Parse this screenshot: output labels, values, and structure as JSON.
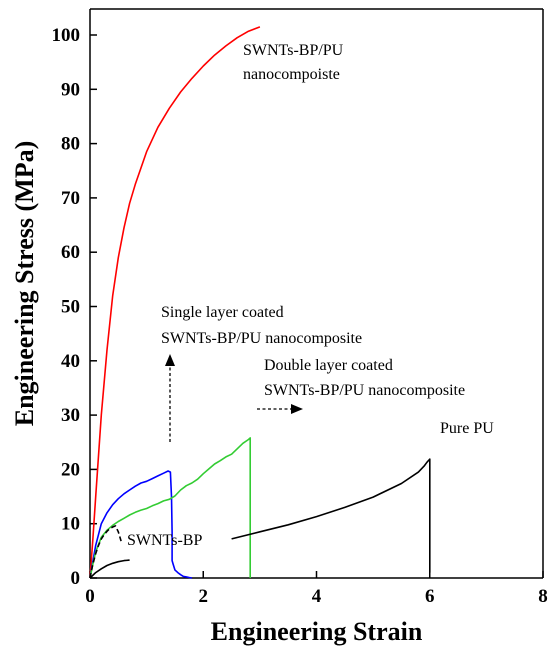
{
  "chart_data": {
    "type": "line",
    "xlabel": "Engineering Strain",
    "ylabel": "Engineering Stress (MPa)",
    "xlim": [
      0,
      8
    ],
    "ylim": [
      0,
      105
    ],
    "xticks": [
      0,
      2,
      4,
      6,
      8
    ],
    "yticks": [
      0,
      10,
      20,
      30,
      40,
      50,
      60,
      70,
      80,
      90,
      100
    ],
    "grid": false,
    "series": [
      {
        "key": "red",
        "color": "#ff0000",
        "dash": "",
        "x": [
          0,
          0.05,
          0.1,
          0.2,
          0.3,
          0.4,
          0.5,
          0.6,
          0.7,
          0.8,
          1.0,
          1.2,
          1.4,
          1.6,
          1.8,
          2.0,
          2.2,
          2.4,
          2.6,
          2.8,
          3.0
        ],
        "y": [
          0,
          7,
          15,
          30,
          42,
          52,
          59,
          64.5,
          69,
          72.5,
          78.5,
          83,
          86.5,
          89.5,
          92,
          94.3,
          96.3,
          98,
          99.5,
          100.7,
          101.5
        ]
      },
      {
        "key": "blue",
        "color": "#0000ff",
        "dash": "",
        "x": [
          0,
          0.05,
          0.1,
          0.2,
          0.3,
          0.4,
          0.5,
          0.6,
          0.7,
          0.8,
          0.9,
          1.0,
          1.1,
          1.2,
          1.3,
          1.38,
          1.42,
          1.44,
          1.45,
          1.45,
          1.47,
          1.5,
          1.55,
          1.6,
          1.65,
          1.7,
          1.75,
          1.8
        ],
        "y": [
          0,
          3,
          6,
          10,
          12,
          13.5,
          14.6,
          15.5,
          16.2,
          16.9,
          17.5,
          17.8,
          18.3,
          18.8,
          19.3,
          19.7,
          19.5,
          15,
          8.5,
          3.2,
          2.5,
          1.5,
          1.0,
          0.6,
          0.3,
          0.2,
          0.1,
          0
        ]
      },
      {
        "key": "green",
        "color": "#33cc33",
        "dash": "",
        "x": [
          0,
          0.05,
          0.1,
          0.2,
          0.3,
          0.4,
          0.5,
          0.6,
          0.7,
          0.8,
          0.9,
          1.0,
          1.1,
          1.2,
          1.3,
          1.4,
          1.5,
          1.6,
          1.7,
          1.8,
          1.9,
          2.0,
          2.1,
          2.2,
          2.3,
          2.4,
          2.5,
          2.6,
          2.7,
          2.8,
          2.83,
          2.83
        ],
        "y": [
          0,
          2.5,
          4.8,
          7.5,
          8.8,
          9.7,
          10.4,
          11.0,
          11.6,
          12.1,
          12.5,
          12.8,
          13.3,
          13.7,
          14.2,
          14.5,
          15.1,
          16.2,
          17.0,
          17.5,
          18.2,
          19.2,
          20.1,
          21.0,
          21.6,
          22.3,
          22.8,
          23.8,
          24.8,
          25.5,
          25.8,
          0
        ]
      },
      {
        "key": "black-dashed",
        "color": "#000000",
        "dash": "5,3",
        "x": [
          0,
          0.05,
          0.1,
          0.15,
          0.2,
          0.25,
          0.3,
          0.35,
          0.4,
          0.45,
          0.5,
          0.55
        ],
        "y": [
          0,
          2.5,
          4.5,
          6.0,
          7.2,
          8.0,
          8.6,
          9.1,
          9.4,
          9.6,
          8.5,
          6.8
        ]
      },
      {
        "key": "black-short",
        "color": "#000000",
        "dash": "",
        "x": [
          0,
          0.1,
          0.2,
          0.3,
          0.4,
          0.5,
          0.6,
          0.7
        ],
        "y": [
          0,
          1.0,
          1.7,
          2.3,
          2.7,
          3.0,
          3.2,
          3.3
        ]
      },
      {
        "key": "black-long",
        "color": "#000000",
        "dash": "",
        "x": [
          2.5,
          3.0,
          3.5,
          4.0,
          4.5,
          5.0,
          5.5,
          5.8,
          5.9,
          5.95,
          6.0,
          6.0
        ],
        "y": [
          7.2,
          8.5,
          9.8,
          11.3,
          13.0,
          14.9,
          17.4,
          19.5,
          20.6,
          21.3,
          21.9,
          1.0
        ]
      }
    ],
    "annotations": {
      "red_line1": "SWNTs-BP/PU",
      "red_line2": "nanocompoiste",
      "single_line1": "Single layer coated",
      "single_line2": "SWNTs-BP/PU nanocomposite",
      "double_line1": "Double layer coated",
      "double_line2": "SWNTs-BP/PU nanocomposite",
      "pure": "Pure PU",
      "swnt": "SWNTs-BP"
    }
  }
}
